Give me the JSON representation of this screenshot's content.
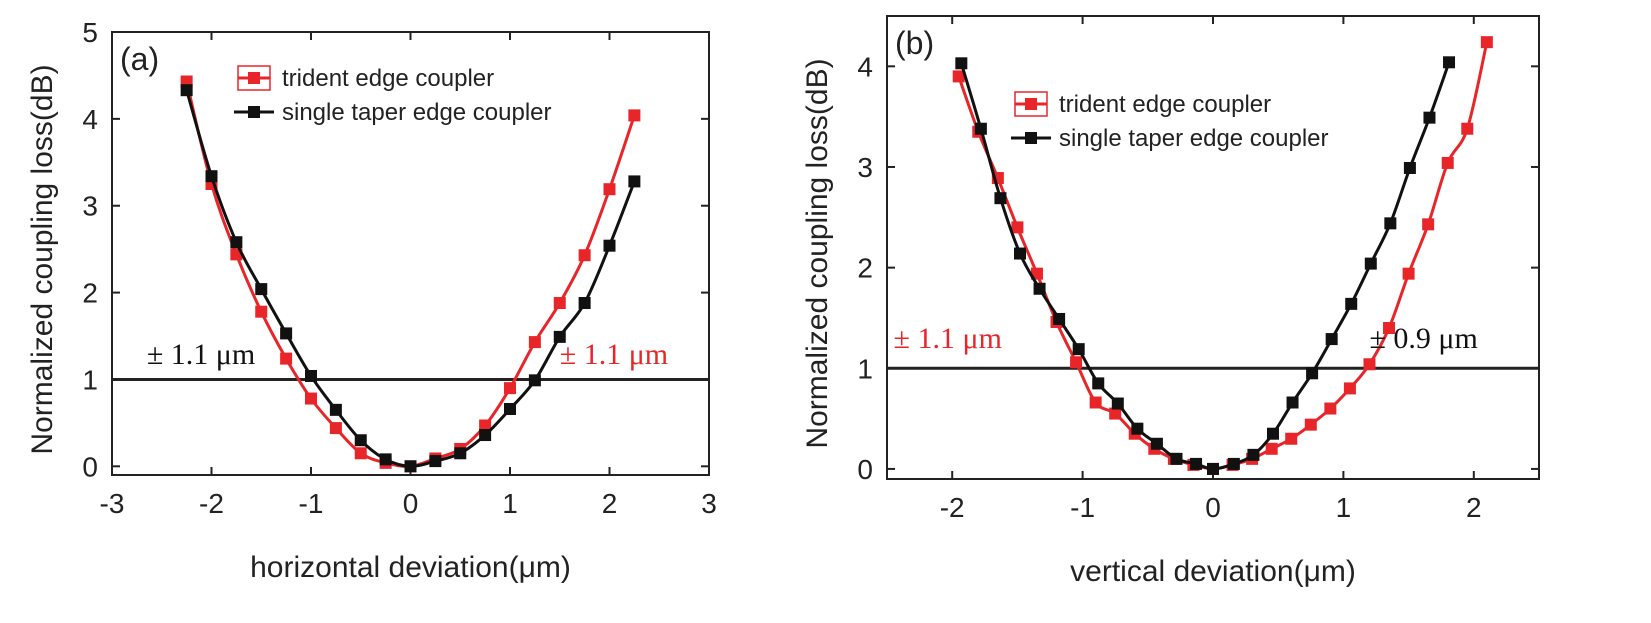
{
  "colors": {
    "trident": "#e8262a",
    "single": "#111111",
    "axis": "#222222"
  },
  "chart_data": [
    {
      "type": "line",
      "panel_label": "(a)",
      "xlabel": "horizontal deviation(μm)",
      "ylabel": "Normalized coupling loss(dB)",
      "xlim": [
        -3,
        3
      ],
      "ylim": [
        -0.1,
        5
      ],
      "xticks": [
        -3,
        -2,
        -1,
        0,
        1,
        2,
        3
      ],
      "yticks": [
        0,
        1,
        2,
        3,
        4,
        5
      ],
      "threshold_y": 1,
      "legend_position": "top",
      "legend": [
        "trident edge coupler",
        "single taper edge coupler"
      ],
      "annotations": [
        {
          "text": "± 1.1 μm",
          "series": "single",
          "x": -2.65,
          "y": 1.18
        },
        {
          "text": "± 1.1 μm",
          "series": "trident",
          "x": 1.5,
          "y": 1.18
        }
      ],
      "series": [
        {
          "name": "trident edge coupler",
          "key": "trident",
          "x": [
            -2.25,
            -2.0,
            -1.75,
            -1.5,
            -1.25,
            -1.0,
            -0.75,
            -0.5,
            -0.25,
            0.0,
            0.25,
            0.5,
            0.75,
            1.0,
            1.25,
            1.5,
            1.75,
            2.0,
            2.25
          ],
          "y": [
            4.43,
            3.25,
            2.44,
            1.78,
            1.24,
            0.78,
            0.44,
            0.15,
            0.04,
            0.0,
            0.09,
            0.2,
            0.47,
            0.9,
            1.43,
            1.88,
            2.43,
            3.19,
            4.04
          ]
        },
        {
          "name": "single taper edge coupler",
          "key": "single",
          "x": [
            -2.25,
            -2.0,
            -1.75,
            -1.5,
            -1.25,
            -1.0,
            -0.75,
            -0.5,
            -0.25,
            0.0,
            0.25,
            0.5,
            0.75,
            1.0,
            1.25,
            1.5,
            1.75,
            2.0,
            2.25
          ],
          "y": [
            4.33,
            3.34,
            2.58,
            2.04,
            1.53,
            1.04,
            0.65,
            0.3,
            0.08,
            0.0,
            0.06,
            0.15,
            0.36,
            0.66,
            0.99,
            1.49,
            1.88,
            2.54,
            3.28
          ]
        }
      ]
    },
    {
      "type": "line",
      "panel_label": "(b)",
      "xlabel": "vertical deviation(μm)",
      "ylabel": "Normalized coupling loss(dB)",
      "xlim": [
        -2.5,
        2.5
      ],
      "ylim": [
        -0.1,
        4.5
      ],
      "xticks": [
        -2,
        -1,
        0,
        1,
        2
      ],
      "yticks": [
        0,
        1,
        2,
        3,
        4
      ],
      "threshold_y": 1,
      "legend_position": "top",
      "legend": [
        "trident edge coupler",
        "single taper edge coupler"
      ],
      "annotations": [
        {
          "text": "± 1.1 μm",
          "series": "trident",
          "x": -2.45,
          "y": 1.2
        },
        {
          "text": "± 0.9 μm",
          "series": "single",
          "x": 1.2,
          "y": 1.2
        }
      ],
      "series": [
        {
          "name": "trident edge coupler",
          "key": "trident",
          "x": [
            -1.95,
            -1.8,
            -1.65,
            -1.5,
            -1.35,
            -1.2,
            -1.05,
            -0.9,
            -0.75,
            -0.6,
            -0.45,
            -0.3,
            -0.15,
            0.0,
            0.15,
            0.3,
            0.45,
            0.6,
            0.75,
            0.9,
            1.05,
            1.2,
            1.35,
            1.5,
            1.65,
            1.8,
            1.95,
            2.1
          ],
          "y": [
            3.9,
            3.35,
            2.89,
            2.4,
            1.94,
            1.46,
            1.06,
            0.66,
            0.55,
            0.35,
            0.2,
            0.1,
            0.04,
            0.0,
            0.04,
            0.1,
            0.2,
            0.3,
            0.44,
            0.6,
            0.8,
            1.04,
            1.4,
            1.94,
            2.43,
            3.04,
            3.38,
            4.24
          ]
        },
        {
          "name": "single taper edge coupler",
          "key": "single",
          "x": [
            -1.93,
            -1.78,
            -1.63,
            -1.48,
            -1.33,
            -1.18,
            -1.03,
            -0.88,
            -0.73,
            -0.58,
            -0.43,
            -0.28,
            -0.13,
            0.0,
            0.16,
            0.31,
            0.46,
            0.61,
            0.76,
            0.91,
            1.06,
            1.21,
            1.36,
            1.51,
            1.66,
            1.81
          ],
          "y": [
            4.03,
            3.38,
            2.69,
            2.14,
            1.79,
            1.49,
            1.19,
            0.85,
            0.65,
            0.4,
            0.25,
            0.1,
            0.05,
            0.0,
            0.05,
            0.14,
            0.35,
            0.66,
            0.95,
            1.29,
            1.64,
            2.04,
            2.44,
            2.99,
            3.49,
            4.04
          ]
        }
      ]
    }
  ]
}
